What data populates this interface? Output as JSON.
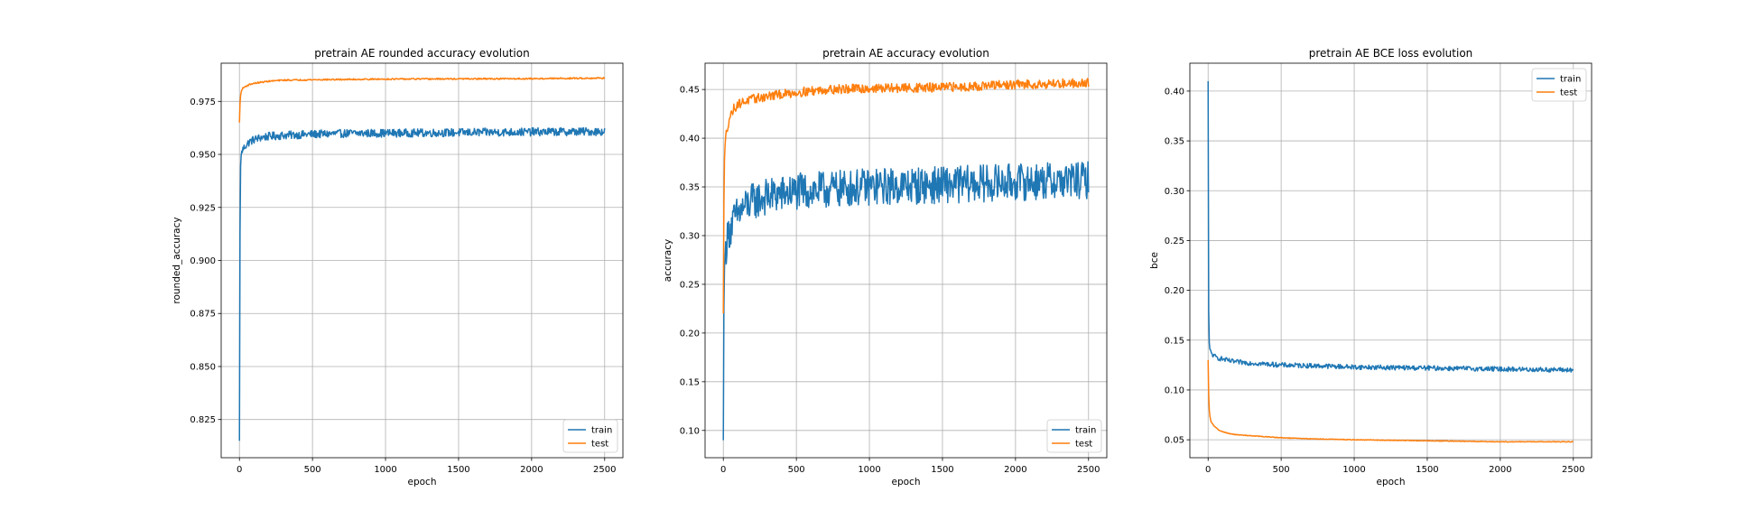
{
  "chart_data": [
    {
      "type": "line",
      "title": "pretrain AE rounded accuracy evolution",
      "xlabel": "epoch",
      "ylabel": "rounded_accuracy",
      "xlim": [
        -125,
        2625
      ],
      "ylim": [
        0.807,
        0.993
      ],
      "xticks": [
        0,
        500,
        1000,
        1500,
        2000,
        2500
      ],
      "yticks": [
        0.825,
        0.85,
        0.875,
        0.9,
        0.925,
        0.95,
        0.975
      ],
      "ytick_labels": [
        "0.825",
        "0.850",
        "0.875",
        "0.900",
        "0.925",
        "0.950",
        "0.975"
      ],
      "grid": true,
      "legend_position": "lower-right",
      "series": [
        {
          "name": "train",
          "color": "#1f77b4",
          "x": [
            0,
            3,
            6,
            10,
            20,
            40,
            70,
            100,
            150,
            200,
            300,
            500,
            800,
            1000,
            1500,
            2000,
            2500
          ],
          "y": [
            0.815,
            0.9,
            0.94,
            0.949,
            0.952,
            0.954,
            0.956,
            0.957,
            0.958,
            0.9585,
            0.959,
            0.9595,
            0.96,
            0.96,
            0.9603,
            0.9606,
            0.9608
          ],
          "noise": 0.0012
        },
        {
          "name": "test",
          "color": "#ff7f0e",
          "x": [
            0,
            5,
            10,
            20,
            40,
            70,
            100,
            150,
            200,
            300,
            500,
            1000,
            1500,
            2000,
            2500
          ],
          "y": [
            0.965,
            0.976,
            0.979,
            0.981,
            0.982,
            0.983,
            0.9835,
            0.984,
            0.9845,
            0.985,
            0.9852,
            0.9855,
            0.9856,
            0.9857,
            0.986
          ],
          "noise": 0.0002
        }
      ]
    },
    {
      "type": "line",
      "title": "pretrain AE accuracy evolution",
      "xlabel": "epoch",
      "ylabel": "accuracy",
      "xlim": [
        -125,
        2625
      ],
      "ylim": [
        0.072,
        0.477
      ],
      "xticks": [
        0,
        500,
        1000,
        1500,
        2000,
        2500
      ],
      "yticks": [
        0.1,
        0.15,
        0.2,
        0.25,
        0.3,
        0.35,
        0.4,
        0.45
      ],
      "ytick_labels": [
        "0.10",
        "0.15",
        "0.20",
        "0.25",
        "0.30",
        "0.35",
        "0.40",
        "0.45"
      ],
      "grid": true,
      "legend_position": "lower-right",
      "series": [
        {
          "name": "train",
          "color": "#1f77b4",
          "x": [
            0,
            3,
            6,
            10,
            20,
            40,
            70,
            100,
            150,
            200,
            300,
            500,
            800,
            1000,
            1500,
            2000,
            2500
          ],
          "y": [
            0.09,
            0.21,
            0.26,
            0.275,
            0.29,
            0.305,
            0.315,
            0.322,
            0.33,
            0.335,
            0.34,
            0.345,
            0.348,
            0.35,
            0.352,
            0.355,
            0.357
          ],
          "noise": 0.012
        },
        {
          "name": "test",
          "color": "#ff7f0e",
          "x": [
            0,
            5,
            10,
            20,
            40,
            70,
            100,
            150,
            200,
            300,
            500,
            700,
            1000,
            1500,
            2000,
            2500
          ],
          "y": [
            0.22,
            0.36,
            0.39,
            0.405,
            0.42,
            0.43,
            0.435,
            0.438,
            0.44,
            0.443,
            0.447,
            0.45,
            0.451,
            0.452,
            0.455,
            0.457
          ],
          "noise": 0.003
        }
      ]
    },
    {
      "type": "line",
      "title": "pretrain AE BCE loss evolution",
      "xlabel": "epoch",
      "ylabel": "bce",
      "xlim": [
        -125,
        2625
      ],
      "ylim": [
        0.032,
        0.428
      ],
      "xticks": [
        0,
        500,
        1000,
        1500,
        2000,
        2500
      ],
      "yticks": [
        0.05,
        0.1,
        0.15,
        0.2,
        0.25,
        0.3,
        0.35,
        0.4
      ],
      "ytick_labels": [
        "0.05",
        "0.10",
        "0.15",
        "0.20",
        "0.25",
        "0.30",
        "0.35",
        "0.40"
      ],
      "grid": true,
      "legend_position": "top-right",
      "series": [
        {
          "name": "train",
          "color": "#1f77b4",
          "x": [
            0,
            2,
            4,
            7,
            10,
            20,
            40,
            70,
            100,
            150,
            200,
            300,
            500,
            800,
            1000,
            1500,
            2000,
            2500
          ],
          "y": [
            0.41,
            0.25,
            0.18,
            0.15,
            0.142,
            0.137,
            0.134,
            0.132,
            0.131,
            0.129,
            0.128,
            0.127,
            0.125,
            0.124,
            0.123,
            0.122,
            0.121,
            0.12
          ],
          "noise": 0.0015
        },
        {
          "name": "test",
          "color": "#ff7f0e",
          "x": [
            0,
            3,
            6,
            10,
            20,
            40,
            70,
            100,
            150,
            200,
            300,
            500,
            700,
            1000,
            1500,
            2000,
            2500
          ],
          "y": [
            0.13,
            0.1,
            0.085,
            0.075,
            0.068,
            0.064,
            0.06,
            0.058,
            0.056,
            0.055,
            0.054,
            0.052,
            0.051,
            0.05,
            0.049,
            0.048,
            0.048
          ],
          "noise": 0.0002
        }
      ]
    }
  ]
}
